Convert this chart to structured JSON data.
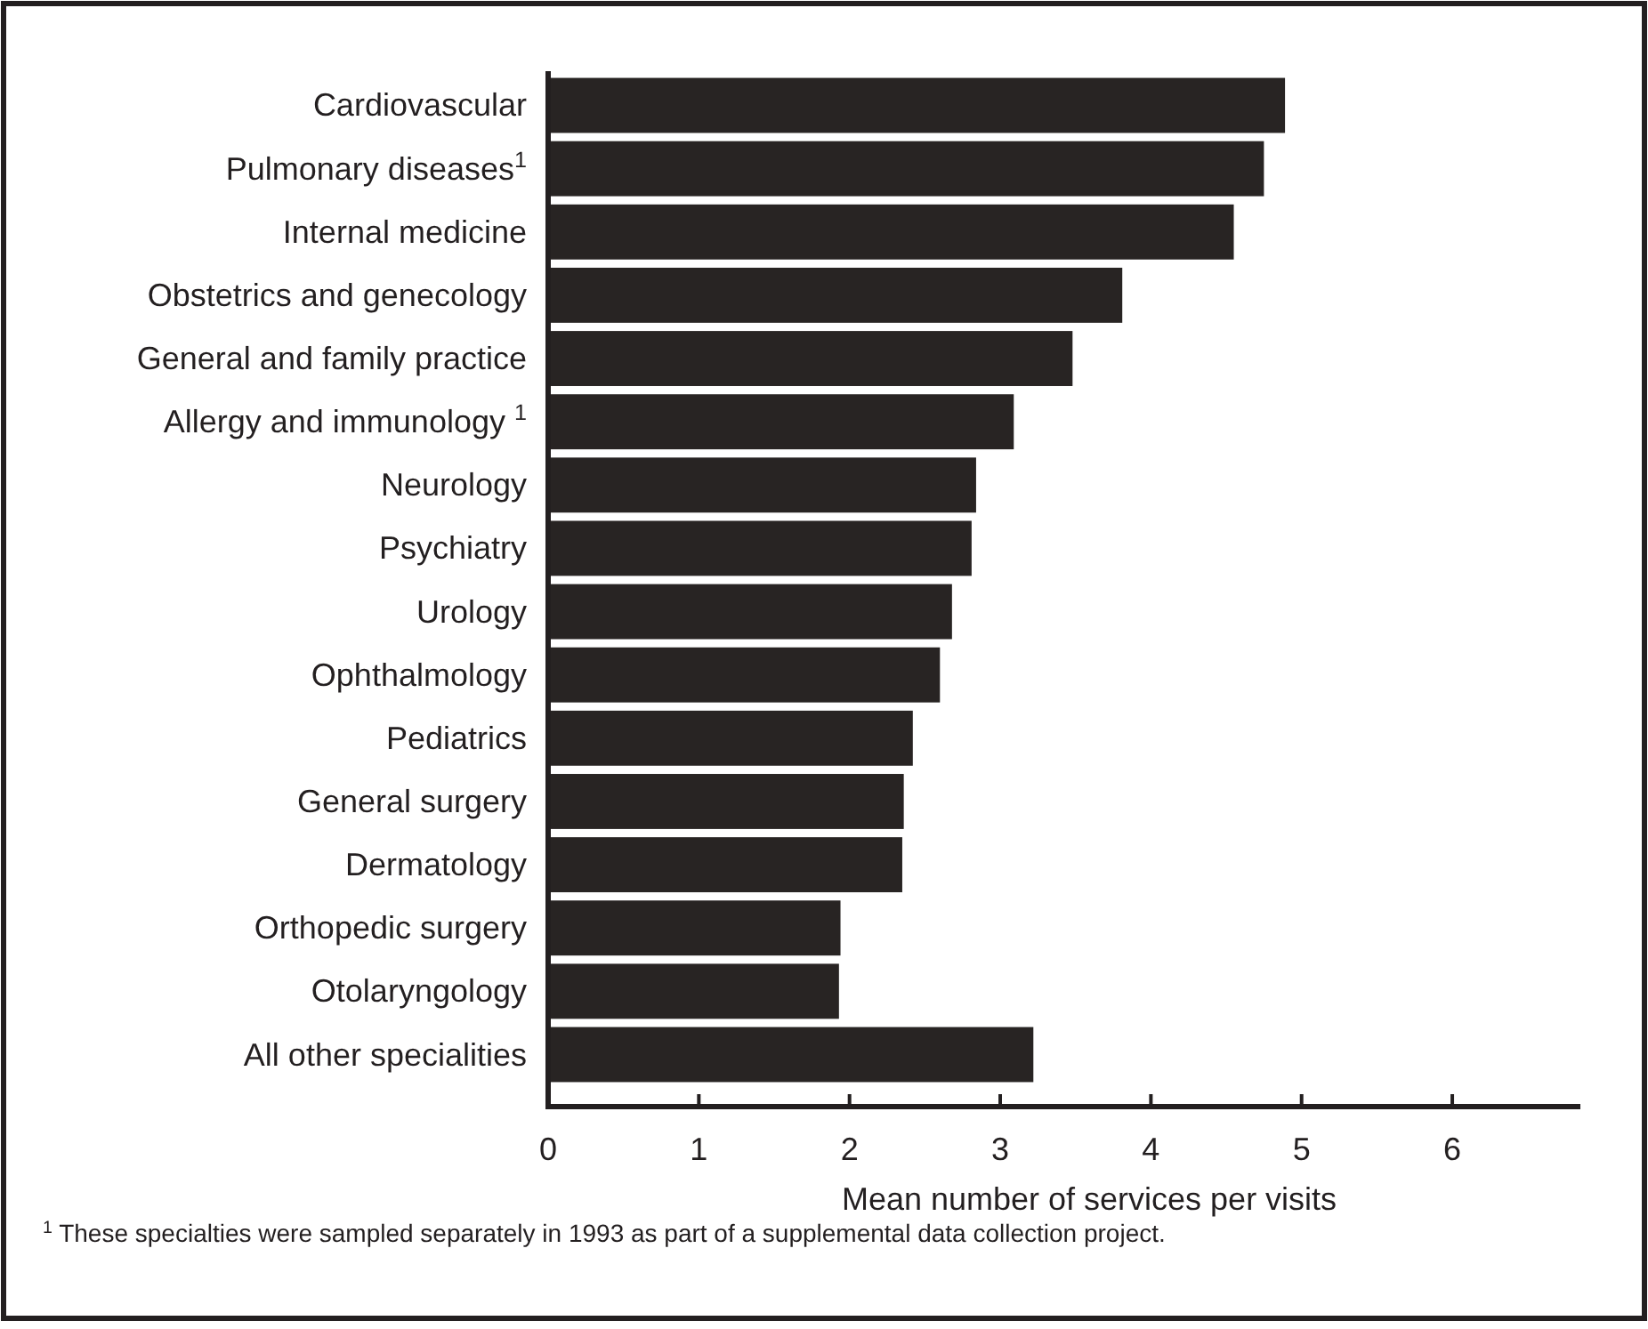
{
  "chart_data": {
    "type": "bar",
    "orientation": "horizontal",
    "xlabel": "Mean number of services per visits",
    "categories": [
      "Cardiovascular",
      "Pulmonary diseases$^{1}$",
      "Internal medicine",
      "Obstetrics and genecology",
      "General and family practice",
      "Allergy and immunology $^{1}$",
      "Neurology",
      "Psychiatry",
      "Urology",
      "Ophthalmology",
      "Pediatrics",
      "General surgery",
      "Dermatology",
      "Orthopedic surgery",
      "Otolaryngology",
      "All other specialities"
    ],
    "values": [
      4.89,
      4.75,
      4.55,
      3.81,
      3.48,
      3.09,
      2.84,
      2.81,
      2.68,
      2.6,
      2.42,
      2.36,
      2.35,
      1.94,
      1.93,
      3.22
    ],
    "color": "#282423",
    "xlim": [
      0,
      6.85
    ],
    "xticks": [
      0,
      1,
      2,
      3,
      4,
      5,
      6
    ],
    "grid": false,
    "annotations": [
      "$^{1}$ These specialties were sampled separately in 1993 as part of a supplemental data collection project."
    ]
  }
}
